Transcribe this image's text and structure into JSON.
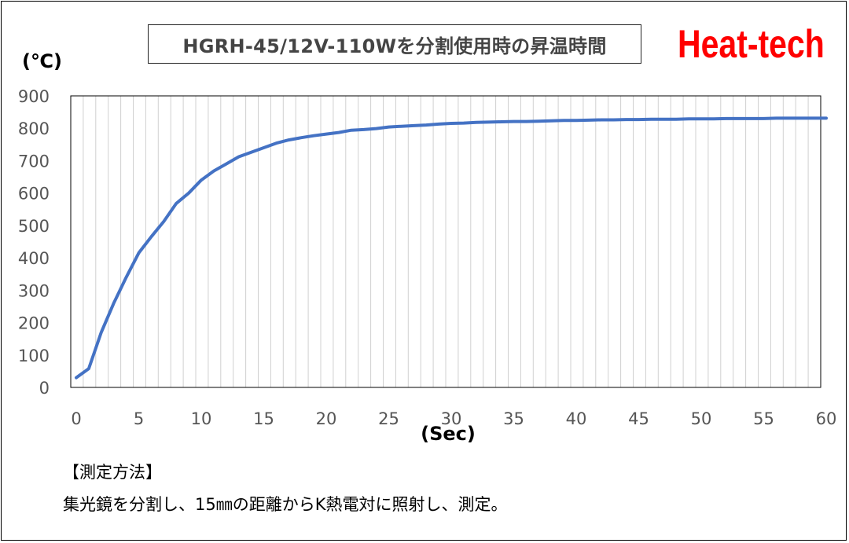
{
  "chart_data": {
    "type": "line",
    "title": "HGRH-45/12V-110Wを分割使用時の昇温時間",
    "xlabel": "(Sec)",
    "ylabel": "(℃)",
    "xlim": [
      0,
      60
    ],
    "ylim": [
      0,
      900
    ],
    "x_ticks": [
      "0",
      "5",
      "10",
      "15",
      "20",
      "25",
      "30",
      "35",
      "40",
      "45",
      "50",
      "55",
      "60"
    ],
    "y_ticks": [
      "0",
      "100",
      "200",
      "300",
      "400",
      "500",
      "600",
      "700",
      "800",
      "900"
    ],
    "grid": "vertical every 1 sec, horizontal none",
    "series": [
      {
        "color": "#4472c4",
        "x": [
          0,
          1,
          2,
          3,
          4,
          5,
          6,
          7,
          8,
          9,
          10,
          11,
          12,
          13,
          14,
          15,
          16,
          17,
          18,
          19,
          20,
          21,
          22,
          23,
          24,
          25,
          26,
          27,
          28,
          29,
          30,
          31,
          32,
          33,
          34,
          35,
          36,
          37,
          38,
          39,
          40,
          41,
          42,
          43,
          44,
          45,
          46,
          47,
          48,
          49,
          50,
          51,
          52,
          53,
          54,
          55,
          56,
          57,
          58,
          59,
          60
        ],
        "values": [
          30,
          58,
          170,
          260,
          340,
          415,
          465,
          512,
          568,
          600,
          640,
          668,
          690,
          712,
          726,
          740,
          754,
          764,
          771,
          777,
          782,
          787,
          794,
          796,
          799,
          804,
          806,
          808,
          810,
          813,
          815,
          816,
          818,
          819,
          820,
          821,
          821,
          822,
          823,
          824,
          824,
          825,
          826,
          826,
          827,
          827,
          828,
          828,
          828,
          829,
          829,
          829,
          830,
          830,
          830,
          830,
          831,
          831,
          831,
          831,
          831
        ]
      }
    ]
  },
  "brand": "Heat-tech",
  "note": {
    "heading": "【測定方法】",
    "body": "集光鏡を分割し、15㎜の距離からK熱電対に照射し、測定。"
  },
  "colors": {
    "line": "#4472c4",
    "brand": "#ff0000",
    "grid": "#d0d0d0",
    "axis_text": "#555555"
  }
}
